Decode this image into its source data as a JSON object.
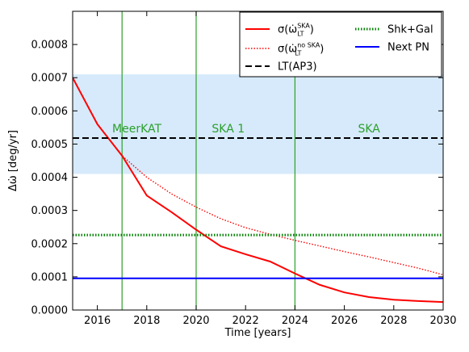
{
  "chart_data": {
    "type": "line",
    "xlabel": "Time [years]",
    "ylabel": "Δω̇ [deg/yr]",
    "xlim": [
      2015,
      2030
    ],
    "ylim": [
      0,
      0.0009
    ],
    "x_ticks": [
      2016,
      2018,
      2020,
      2022,
      2024,
      2026,
      2028,
      2030
    ],
    "x_tick_labels": [
      "2016",
      "2018",
      "2020",
      "2022",
      "2024",
      "2026",
      "2028",
      "2030"
    ],
    "y_ticks": [
      0,
      0.0001,
      0.0002,
      0.0003,
      0.0004,
      0.0005,
      0.0006,
      0.0007,
      0.0008
    ],
    "y_tick_labels": [
      "0.0000",
      "0.0001",
      "0.0002",
      "0.0003",
      "0.0004",
      "0.0005",
      "0.0006",
      "0.0007",
      "0.0008"
    ],
    "grid": false,
    "legend_position": "top-right",
    "shaded_band": {
      "y_from": 0.00041,
      "y_to": 0.00071,
      "color": "#d6eafb"
    },
    "vertical_lines": [
      {
        "x": 2017,
        "color": "#2ca02c"
      },
      {
        "x": 2020,
        "color": "#2ca02c"
      },
      {
        "x": 2024,
        "color": "#2ca02c"
      }
    ],
    "region_labels": [
      {
        "text": "MeerKAT",
        "x": 2017.6,
        "y": 0.000535,
        "color": "#2ca02c"
      },
      {
        "text": "SKA 1",
        "x": 2021.3,
        "y": 0.000535,
        "color": "#2ca02c"
      },
      {
        "text": "SKA",
        "x": 2027.0,
        "y": 0.000535,
        "color": "#2ca02c"
      }
    ],
    "series": [
      {
        "name": "σ(ω̇LT^SKA)",
        "legend_main": "σ(ω̇",
        "legend_sub": "LT",
        "legend_sup": "SKA",
        "legend_close": ")",
        "style": "solid",
        "color": "#ff0000",
        "x": [
          2015,
          2016,
          2017,
          2018,
          2019,
          2020,
          2021,
          2022,
          2023,
          2024,
          2025,
          2026,
          2027,
          2028,
          2029,
          2030
        ],
        "values": [
          0.0007,
          0.00056,
          0.000465,
          0.000345,
          0.000295,
          0.000242,
          0.000192,
          0.000168,
          0.000146,
          0.00011,
          7.6e-05,
          5.3e-05,
          3.9e-05,
          3.1e-05,
          2.7e-05,
          2.4e-05
        ]
      },
      {
        "name": "σ(ω̇LT^no SKA)",
        "legend_main": "σ(ω̇",
        "legend_sub": "LT",
        "legend_sup": "no SKA",
        "legend_close": ")",
        "style": "dotted",
        "color": "#ff0000",
        "x": [
          2015,
          2016,
          2017,
          2018,
          2019,
          2020,
          2021,
          2022,
          2023,
          2024,
          2025,
          2026,
          2027,
          2028,
          2029,
          2030
        ],
        "values": [
          0.0007,
          0.00056,
          0.000465,
          0.0004,
          0.00035,
          0.00031,
          0.000275,
          0.000248,
          0.000228,
          0.00021,
          0.000193,
          0.000176,
          0.00016,
          0.000143,
          0.000126,
          0.000106
        ]
      },
      {
        "name": "LT(AP3)",
        "style": "dashed",
        "color": "#000000",
        "x": [
          2015,
          2030
        ],
        "values": [
          0.000518,
          0.000518
        ]
      },
      {
        "name": "Shk+Gal",
        "style": "dotted",
        "color": "#008000",
        "x": [
          2015,
          2030
        ],
        "values": [
          0.000226,
          0.000226
        ]
      },
      {
        "name": "Next PN",
        "style": "solid",
        "color": "#0000ff",
        "x": [
          2015,
          2030
        ],
        "values": [
          9.55e-05,
          9.55e-05
        ]
      }
    ]
  }
}
